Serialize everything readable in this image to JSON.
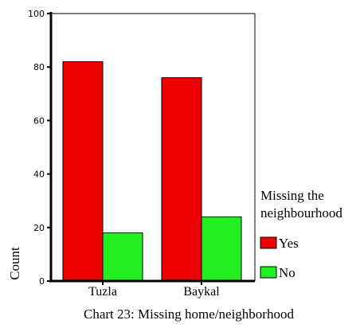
{
  "chart_data": {
    "type": "bar",
    "categories": [
      "Tuzla",
      "Baykal"
    ],
    "series": [
      {
        "name": "Yes",
        "values": [
          82,
          76
        ],
        "color": "#ee0000"
      },
      {
        "name": "No",
        "values": [
          18,
          24
        ],
        "color": "#22ee22"
      }
    ],
    "title": "",
    "caption": "Chart 23: Missing home/neighborhood",
    "xlabel": "",
    "ylabel": "Count",
    "ylim": [
      0,
      100
    ],
    "yticks": [
      0,
      20,
      40,
      60,
      80,
      100
    ],
    "grid": false,
    "legend": {
      "title_lines": [
        "Missing the",
        "neighbourhood"
      ],
      "placement": "right"
    }
  }
}
